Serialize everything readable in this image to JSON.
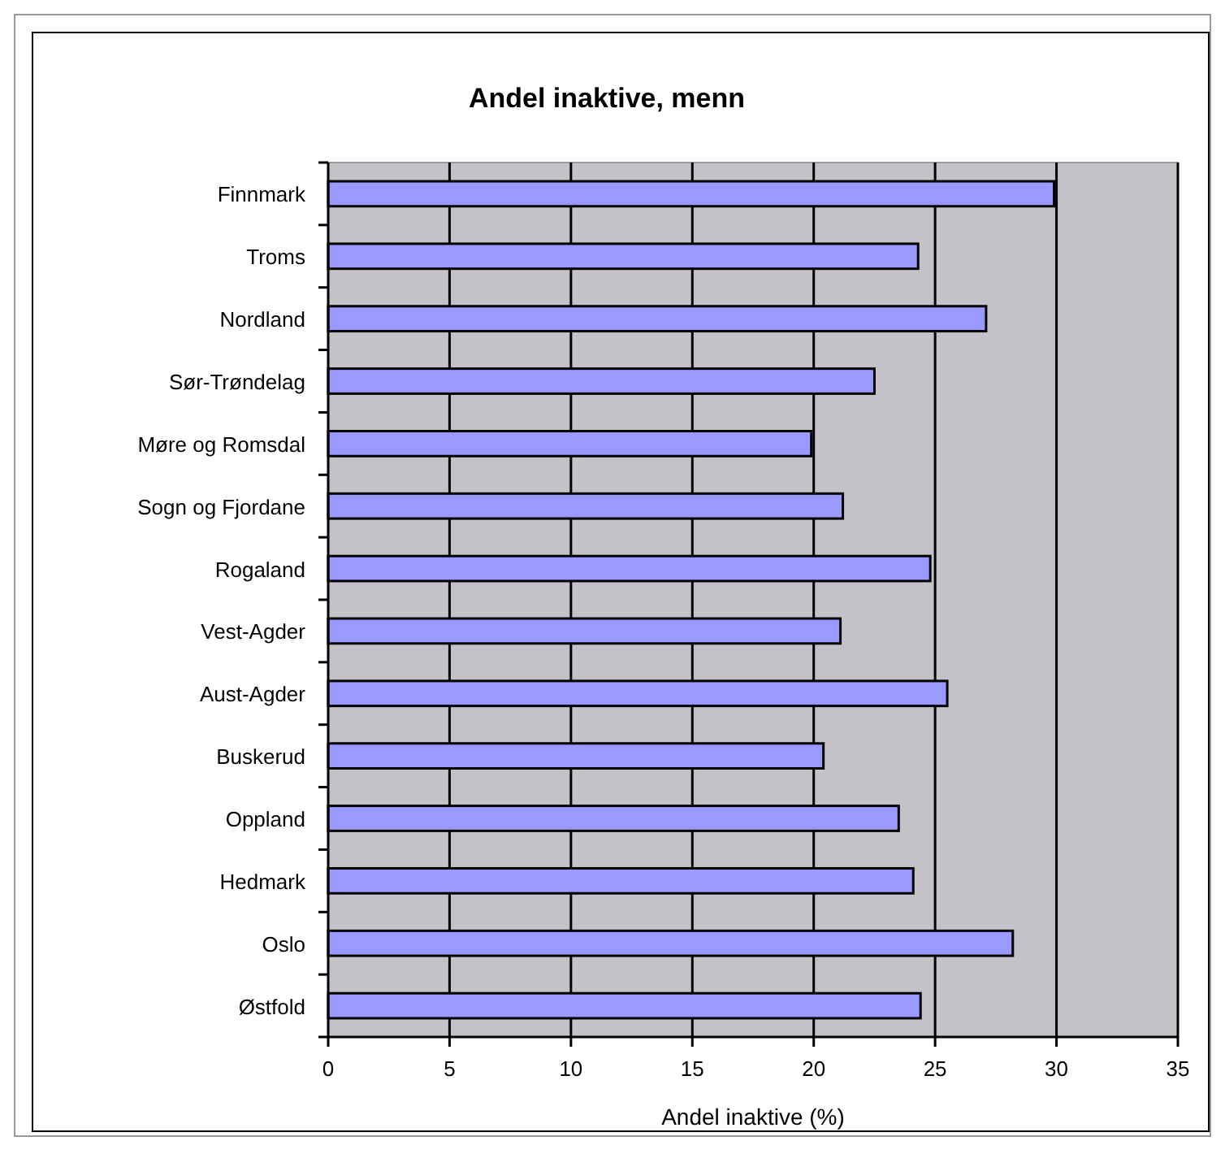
{
  "chart_data": {
    "type": "bar",
    "orientation": "horizontal",
    "title": "Andel inaktive, menn",
    "xlabel": "Andel inaktive (%)",
    "categories": [
      "Finnmark",
      "Troms",
      "Nordland",
      "Sør-Trøndelag",
      "Møre og Romsdal",
      "Sogn og Fjordane",
      "Rogaland",
      "Vest-Agder",
      "Aust-Agder",
      "Buskerud",
      "Oppland",
      "Hedmark",
      "Oslo",
      "Østfold"
    ],
    "values": [
      29.9,
      24.3,
      27.1,
      22.5,
      19.9,
      21.2,
      24.8,
      21.1,
      25.5,
      20.4,
      23.5,
      24.1,
      28.2,
      24.4
    ],
    "color": "#9999ff",
    "xlim": [
      0,
      35
    ],
    "xticks": [
      0,
      5,
      10,
      15,
      20,
      25,
      30,
      35
    ],
    "grid": "x"
  }
}
